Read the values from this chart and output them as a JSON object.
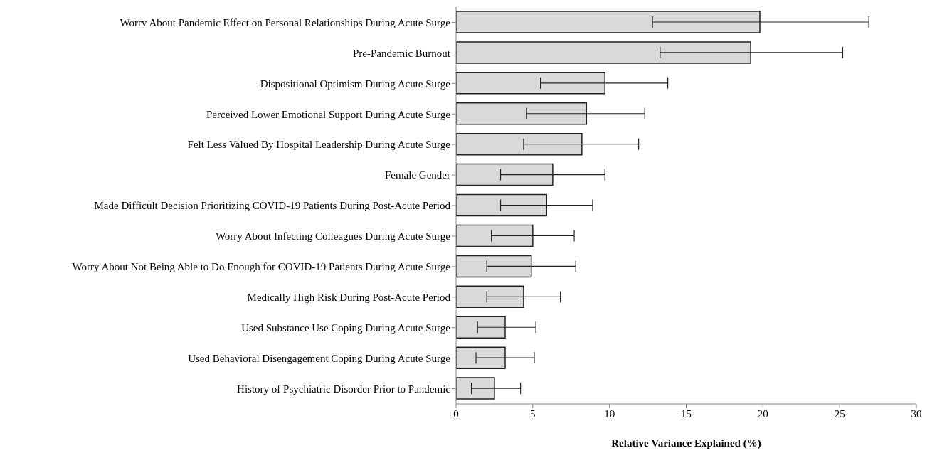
{
  "chart_data": {
    "type": "bar",
    "orientation": "horizontal",
    "xlabel": "Relative Variance Explained (%)",
    "categories": [
      "Worry About Pandemic Effect on Personal Relationships During Acute Surge",
      "Pre-Pandemic Burnout",
      "Dispositional Optimism During Acute Surge",
      "Perceived Lower Emotional Support During Acute Surge",
      "Felt Less Valued By Hospital Leadership During Acute Surge",
      "Female Gender",
      "Made Difficult Decision Prioritizing COVID-19 Patients During Post-Acute Period",
      "Worry About Infecting Colleagues During Acute Surge",
      "Worry About Not Being Able to Do Enough for COVID-19 Patients During Acute Surge",
      "Medically High Risk During Post-Acute Period",
      "Used Substance Use Coping During Acute Surge",
      "Used Behavioral Disengagement Coping During Acute Surge",
      "History of Psychiatric Disorder Prior to Pandemic"
    ],
    "values": [
      19.8,
      19.2,
      9.7,
      8.5,
      8.2,
      6.3,
      5.9,
      5.0,
      4.9,
      4.4,
      3.2,
      3.2,
      2.5
    ],
    "errors": [
      [
        12.8,
        26.9
      ],
      [
        13.3,
        25.2
      ],
      [
        5.5,
        13.8
      ],
      [
        4.6,
        12.3
      ],
      [
        4.4,
        11.9
      ],
      [
        2.9,
        9.7
      ],
      [
        2.9,
        8.9
      ],
      [
        2.3,
        7.7
      ],
      [
        2.0,
        7.8
      ],
      [
        2.0,
        6.8
      ],
      [
        1.4,
        5.2
      ],
      [
        1.3,
        5.1
      ],
      [
        1.0,
        4.2
      ]
    ],
    "color": "#d9d9d9",
    "xlim": [
      0,
      30
    ],
    "xticks": [
      0,
      5,
      10,
      15,
      20,
      25,
      30
    ],
    "grid": false,
    "legend": false
  }
}
